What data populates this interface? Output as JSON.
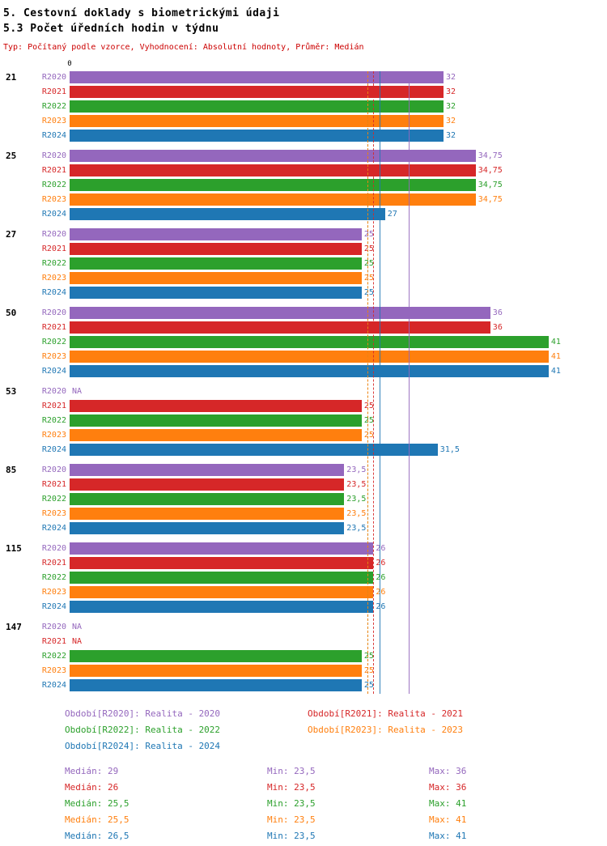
{
  "header": {
    "title": "5. Cestovní doklady s biometrickými údaji",
    "subtitle": "5.3 Počet úředních hodin v týdnu",
    "info": "Typ: Počítaný podle vzorce, Vyhodnocení: Absolutní hodnoty, Průměr: Medián"
  },
  "chart_data": {
    "type": "bar",
    "orientation": "horizontal",
    "xlim": [
      0,
      41
    ],
    "x_origin_label": "0",
    "grid": "median-reference-lines",
    "legend_position": "bottom",
    "series": [
      {
        "name": "R2020",
        "color": "#9467bd",
        "line_style": "solid",
        "legend_label": "Období[R2020]: Realita - 2020",
        "median": 29,
        "min": 23.5,
        "max": 36,
        "median_label": "Medián: 29",
        "min_label": "Min: 23,5",
        "max_label": "Max: 36"
      },
      {
        "name": "R2021",
        "color": "#d62728",
        "line_style": "dashed",
        "legend_label": "Období[R2021]: Realita - 2021",
        "median": 26,
        "min": 23.5,
        "max": 36,
        "median_label": "Medián: 26",
        "min_label": "Min: 23,5",
        "max_label": "Max: 36"
      },
      {
        "name": "R2022",
        "color": "#2ca02c",
        "line_style": "dashed",
        "legend_label": "Období[R2022]: Realita - 2022",
        "median": 25.5,
        "min": 23.5,
        "max": 41,
        "median_label": "Medián: 25,5",
        "min_label": "Min: 23,5",
        "max_label": "Max: 41"
      },
      {
        "name": "R2023",
        "color": "#ff7f0e",
        "line_style": "dashed",
        "legend_label": "Období[R2023]: Realita - 2023",
        "median": 25.5,
        "min": 23.5,
        "max": 41,
        "median_label": "Medián: 25,5",
        "min_label": "Min: 23,5",
        "max_label": "Max: 41"
      },
      {
        "name": "R2024",
        "color": "#1f77b4",
        "line_style": "solid",
        "legend_label": "Období[R2024]: Realita - 2024",
        "median": 26.5,
        "min": 23.5,
        "max": 41,
        "median_label": "Medián: 26,5",
        "min_label": "Min: 23,5",
        "max_label": "Max: 41"
      }
    ],
    "groups": [
      {
        "label": "21",
        "values": [
          32,
          32,
          32,
          32,
          32
        ],
        "value_labels": [
          "32",
          "32",
          "32",
          "32",
          "32"
        ]
      },
      {
        "label": "25",
        "values": [
          34.75,
          34.75,
          34.75,
          34.75,
          27
        ],
        "value_labels": [
          "34,75",
          "34,75",
          "34,75",
          "34,75",
          "27"
        ]
      },
      {
        "label": "27",
        "values": [
          25,
          25,
          25,
          25,
          25
        ],
        "value_labels": [
          "25",
          "25",
          "25",
          "25",
          "25"
        ]
      },
      {
        "label": "50",
        "values": [
          36,
          36,
          41,
          41,
          41
        ],
        "value_labels": [
          "36",
          "36",
          "41",
          "41",
          "41"
        ]
      },
      {
        "label": "53",
        "values": [
          null,
          25,
          25,
          25,
          31.5
        ],
        "value_labels": [
          "NA",
          "25",
          "25",
          "25",
          "31,5"
        ]
      },
      {
        "label": "85",
        "values": [
          23.5,
          23.5,
          23.5,
          23.5,
          23.5
        ],
        "value_labels": [
          "23,5",
          "23,5",
          "23,5",
          "23,5",
          "23,5"
        ]
      },
      {
        "label": "115",
        "values": [
          26,
          26,
          26,
          26,
          26
        ],
        "value_labels": [
          "26",
          "26",
          "26",
          "26",
          "26"
        ]
      },
      {
        "label": "147",
        "values": [
          null,
          null,
          25,
          25,
          25
        ],
        "value_labels": [
          "NA",
          "NA",
          "25",
          "25",
          "25"
        ]
      }
    ]
  }
}
